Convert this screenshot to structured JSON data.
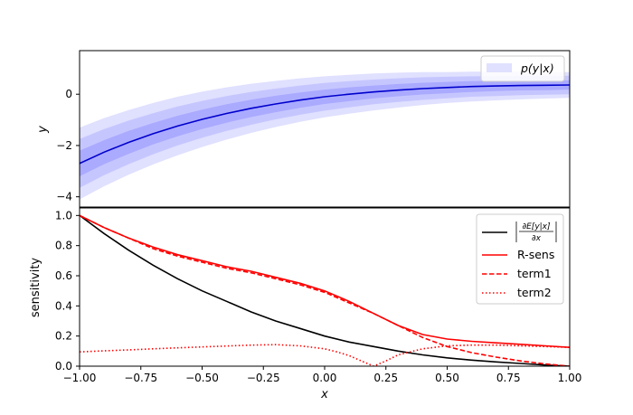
{
  "chart_data": [
    {
      "type": "line",
      "ylabel": "y",
      "xlim": [
        -1.0,
        1.0
      ],
      "ylim": [
        -4.4,
        1.7
      ],
      "yticks": [
        0,
        -2,
        -4
      ],
      "ytick_labels": [
        "0",
        "−2",
        "−4"
      ],
      "legend": {
        "placement": "top-right",
        "entries": [
          {
            "label": "p(y|x)",
            "color": "#c6c6ff"
          }
        ]
      },
      "mean": {
        "color": "#0000cc",
        "x": [
          -1.0,
          -0.9,
          -0.8,
          -0.7,
          -0.6,
          -0.5,
          -0.4,
          -0.3,
          -0.2,
          -0.1,
          0.0,
          0.1,
          0.2,
          0.3,
          0.4,
          0.5,
          0.6,
          0.7,
          0.8,
          0.9,
          1.0
        ],
        "y": [
          -2.7,
          -2.26,
          -1.88,
          -1.54,
          -1.24,
          -0.98,
          -0.75,
          -0.55,
          -0.38,
          -0.23,
          -0.1,
          0.0,
          0.09,
          0.16,
          0.22,
          0.26,
          0.3,
          0.32,
          0.34,
          0.35,
          0.36
        ]
      },
      "bands": [
        {
          "color": "#e0e0ff",
          "halfwidth": [
            1.4,
            1.33,
            1.26,
            1.2,
            1.14,
            1.08,
            1.02,
            0.96,
            0.9,
            0.85,
            0.8,
            0.76,
            0.72,
            0.68,
            0.64,
            0.6,
            0.58,
            0.56,
            0.54,
            0.52,
            0.5
          ]
        },
        {
          "color": "#c6c6ff",
          "halfwidth": [
            0.95,
            0.9,
            0.85,
            0.8,
            0.76,
            0.72,
            0.68,
            0.64,
            0.6,
            0.57,
            0.54,
            0.51,
            0.48,
            0.46,
            0.44,
            0.42,
            0.4,
            0.39,
            0.38,
            0.37,
            0.36
          ]
        },
        {
          "color": "#aaaaff",
          "halfwidth": [
            0.5,
            0.47,
            0.45,
            0.42,
            0.4,
            0.38,
            0.36,
            0.34,
            0.32,
            0.3,
            0.28,
            0.27,
            0.25,
            0.24,
            0.23,
            0.22,
            0.21,
            0.2,
            0.19,
            0.19,
            0.18
          ]
        }
      ]
    },
    {
      "type": "line",
      "xlabel": "x",
      "ylabel": "sensitivity",
      "xlim": [
        -1.0,
        1.0
      ],
      "ylim": [
        0.0,
        1.05
      ],
      "xticks": [
        -1.0,
        -0.75,
        -0.5,
        -0.25,
        0.0,
        0.25,
        0.5,
        0.75,
        1.0
      ],
      "xtick_labels": [
        "−1.00",
        "−0.75",
        "−0.50",
        "−0.25",
        "0.00",
        "0.25",
        "0.50",
        "0.75",
        "1.00"
      ],
      "yticks": [
        0.0,
        0.2,
        0.4,
        0.6,
        0.8,
        1.0
      ],
      "ytick_labels": [
        "0.0",
        "0.2",
        "0.4",
        "0.6",
        "0.8",
        "1.0"
      ],
      "legend": {
        "placement": "top-right"
      },
      "series": [
        {
          "name": "|∂E[y|x]/∂x|",
          "color": "#000000",
          "style": "solid",
          "x": [
            -1.0,
            -0.9,
            -0.8,
            -0.7,
            -0.6,
            -0.5,
            -0.4,
            -0.3,
            -0.2,
            -0.1,
            0.0,
            0.1,
            0.2,
            0.3,
            0.4,
            0.5,
            0.6,
            0.7,
            0.8,
            0.9,
            1.0
          ],
          "y": [
            1.0,
            0.88,
            0.77,
            0.67,
            0.58,
            0.5,
            0.43,
            0.36,
            0.3,
            0.25,
            0.2,
            0.16,
            0.13,
            0.1,
            0.075,
            0.055,
            0.04,
            0.028,
            0.018,
            0.008,
            0.0
          ]
        },
        {
          "name": "R-sens",
          "color": "#ff0000",
          "style": "solid",
          "x": [
            -1.0,
            -0.9,
            -0.8,
            -0.7,
            -0.6,
            -0.5,
            -0.4,
            -0.3,
            -0.2,
            -0.1,
            0.0,
            0.1,
            0.2,
            0.3,
            0.4,
            0.5,
            0.6,
            0.7,
            0.8,
            0.9,
            1.0
          ],
          "y": [
            1.0,
            0.92,
            0.85,
            0.79,
            0.74,
            0.7,
            0.66,
            0.63,
            0.59,
            0.55,
            0.5,
            0.43,
            0.35,
            0.27,
            0.21,
            0.18,
            0.165,
            0.155,
            0.145,
            0.135,
            0.125
          ]
        },
        {
          "name": "term1",
          "color": "#ff0000",
          "style": "dashed",
          "x": [
            -1.0,
            -0.9,
            -0.8,
            -0.7,
            -0.6,
            -0.5,
            -0.4,
            -0.3,
            -0.2,
            -0.1,
            0.0,
            0.1,
            0.2,
            0.3,
            0.4,
            0.5,
            0.6,
            0.7,
            0.8,
            0.9,
            1.0
          ],
          "y": [
            1.0,
            0.92,
            0.85,
            0.78,
            0.73,
            0.69,
            0.65,
            0.62,
            0.58,
            0.54,
            0.49,
            0.42,
            0.35,
            0.27,
            0.19,
            0.13,
            0.09,
            0.06,
            0.035,
            0.015,
            0.0
          ]
        },
        {
          "name": "term2",
          "color": "#ff0000",
          "style": "dotted",
          "x": [
            -1.0,
            -0.9,
            -0.8,
            -0.7,
            -0.6,
            -0.5,
            -0.4,
            -0.3,
            -0.2,
            -0.1,
            0.0,
            0.05,
            0.1,
            0.15,
            0.2,
            0.25,
            0.3,
            0.4,
            0.5,
            0.6,
            0.7,
            0.8,
            0.9,
            1.0
          ],
          "y": [
            0.095,
            0.102,
            0.108,
            0.115,
            0.122,
            0.128,
            0.134,
            0.14,
            0.143,
            0.135,
            0.115,
            0.095,
            0.07,
            0.035,
            0.0,
            0.035,
            0.075,
            0.115,
            0.135,
            0.14,
            0.14,
            0.135,
            0.13,
            0.125
          ]
        }
      ]
    }
  ]
}
